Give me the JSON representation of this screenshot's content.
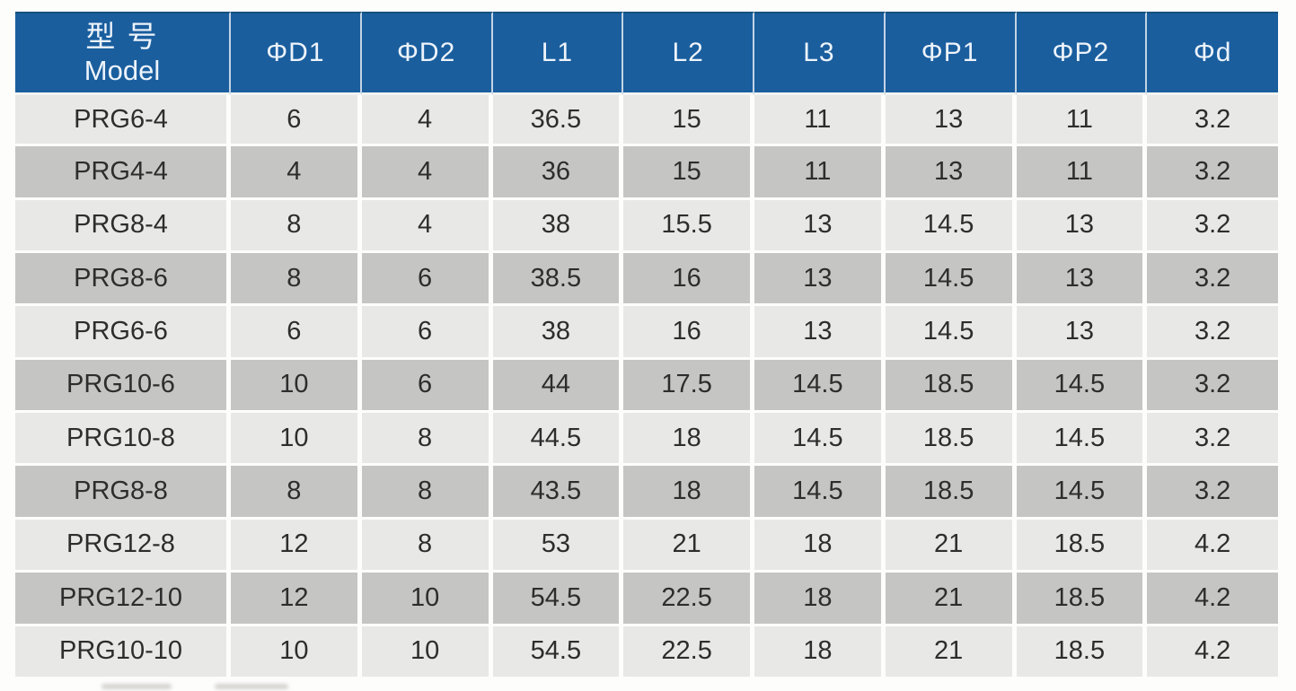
{
  "colors": {
    "header_bg": "#1a5e9e",
    "header_text": "#edf3fa",
    "row_light": "#e8e8e6",
    "row_dark": "#c5c5c3",
    "body_text": "#2d2d2d",
    "page_bg": "#fdfdfc"
  },
  "table": {
    "header": {
      "model_zh": "型 号",
      "model_en": "Model",
      "cols": [
        "ΦD1",
        "ΦD2",
        "L1",
        "L2",
        "L3",
        "ΦP1",
        "ΦP2",
        "Φd"
      ]
    },
    "rows": [
      {
        "model": "PRG6-4",
        "values": [
          "6",
          "4",
          "36.5",
          "15",
          "11",
          "13",
          "11",
          "3.2"
        ]
      },
      {
        "model": "PRG4-4",
        "values": [
          "4",
          "4",
          "36",
          "15",
          "11",
          "13",
          "11",
          "3.2"
        ]
      },
      {
        "model": "PRG8-4",
        "values": [
          "8",
          "4",
          "38",
          "15.5",
          "13",
          "14.5",
          "13",
          "3.2"
        ]
      },
      {
        "model": "PRG8-6",
        "values": [
          "8",
          "6",
          "38.5",
          "16",
          "13",
          "14.5",
          "13",
          "3.2"
        ]
      },
      {
        "model": "PRG6-6",
        "values": [
          "6",
          "6",
          "38",
          "16",
          "13",
          "14.5",
          "13",
          "3.2"
        ]
      },
      {
        "model": "PRG10-6",
        "values": [
          "10",
          "6",
          "44",
          "17.5",
          "14.5",
          "18.5",
          "14.5",
          "3.2"
        ]
      },
      {
        "model": "PRG10-8",
        "values": [
          "10",
          "8",
          "44.5",
          "18",
          "14.5",
          "18.5",
          "14.5",
          "3.2"
        ]
      },
      {
        "model": "PRG8-8",
        "values": [
          "8",
          "8",
          "43.5",
          "18",
          "14.5",
          "18.5",
          "14.5",
          "3.2"
        ]
      },
      {
        "model": "PRG12-8",
        "values": [
          "12",
          "8",
          "53",
          "21",
          "18",
          "21",
          "18.5",
          "4.2"
        ]
      },
      {
        "model": "PRG12-10",
        "values": [
          "12",
          "10",
          "54.5",
          "22.5",
          "18",
          "21",
          "18.5",
          "4.2"
        ]
      },
      {
        "model": "PRG10-10",
        "values": [
          "10",
          "10",
          "54.5",
          "22.5",
          "18",
          "21",
          "18.5",
          "4.2"
        ]
      }
    ]
  }
}
